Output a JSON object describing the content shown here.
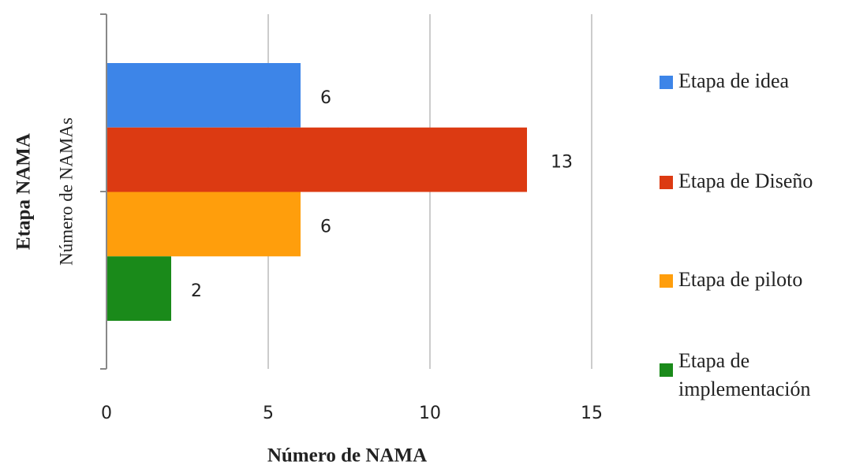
{
  "chart_data": {
    "type": "hbar",
    "xlabel": "Número de NAMA",
    "ylabel": "Etapa NAMA",
    "ylabel2": "Número de NAMAs",
    "categories": [
      "Etapa de idea",
      "Etapa de Diseño",
      "Etapa de piloto",
      "Etapa de implementación"
    ],
    "values": [
      6,
      13,
      6,
      2
    ],
    "colors": [
      "#3d85e8",
      "#dc3a12",
      "#ff9e0c",
      "#1a8a1a"
    ],
    "xlim": [
      0,
      15
    ],
    "xticks": [
      0,
      5,
      10,
      15
    ],
    "grid": true
  }
}
